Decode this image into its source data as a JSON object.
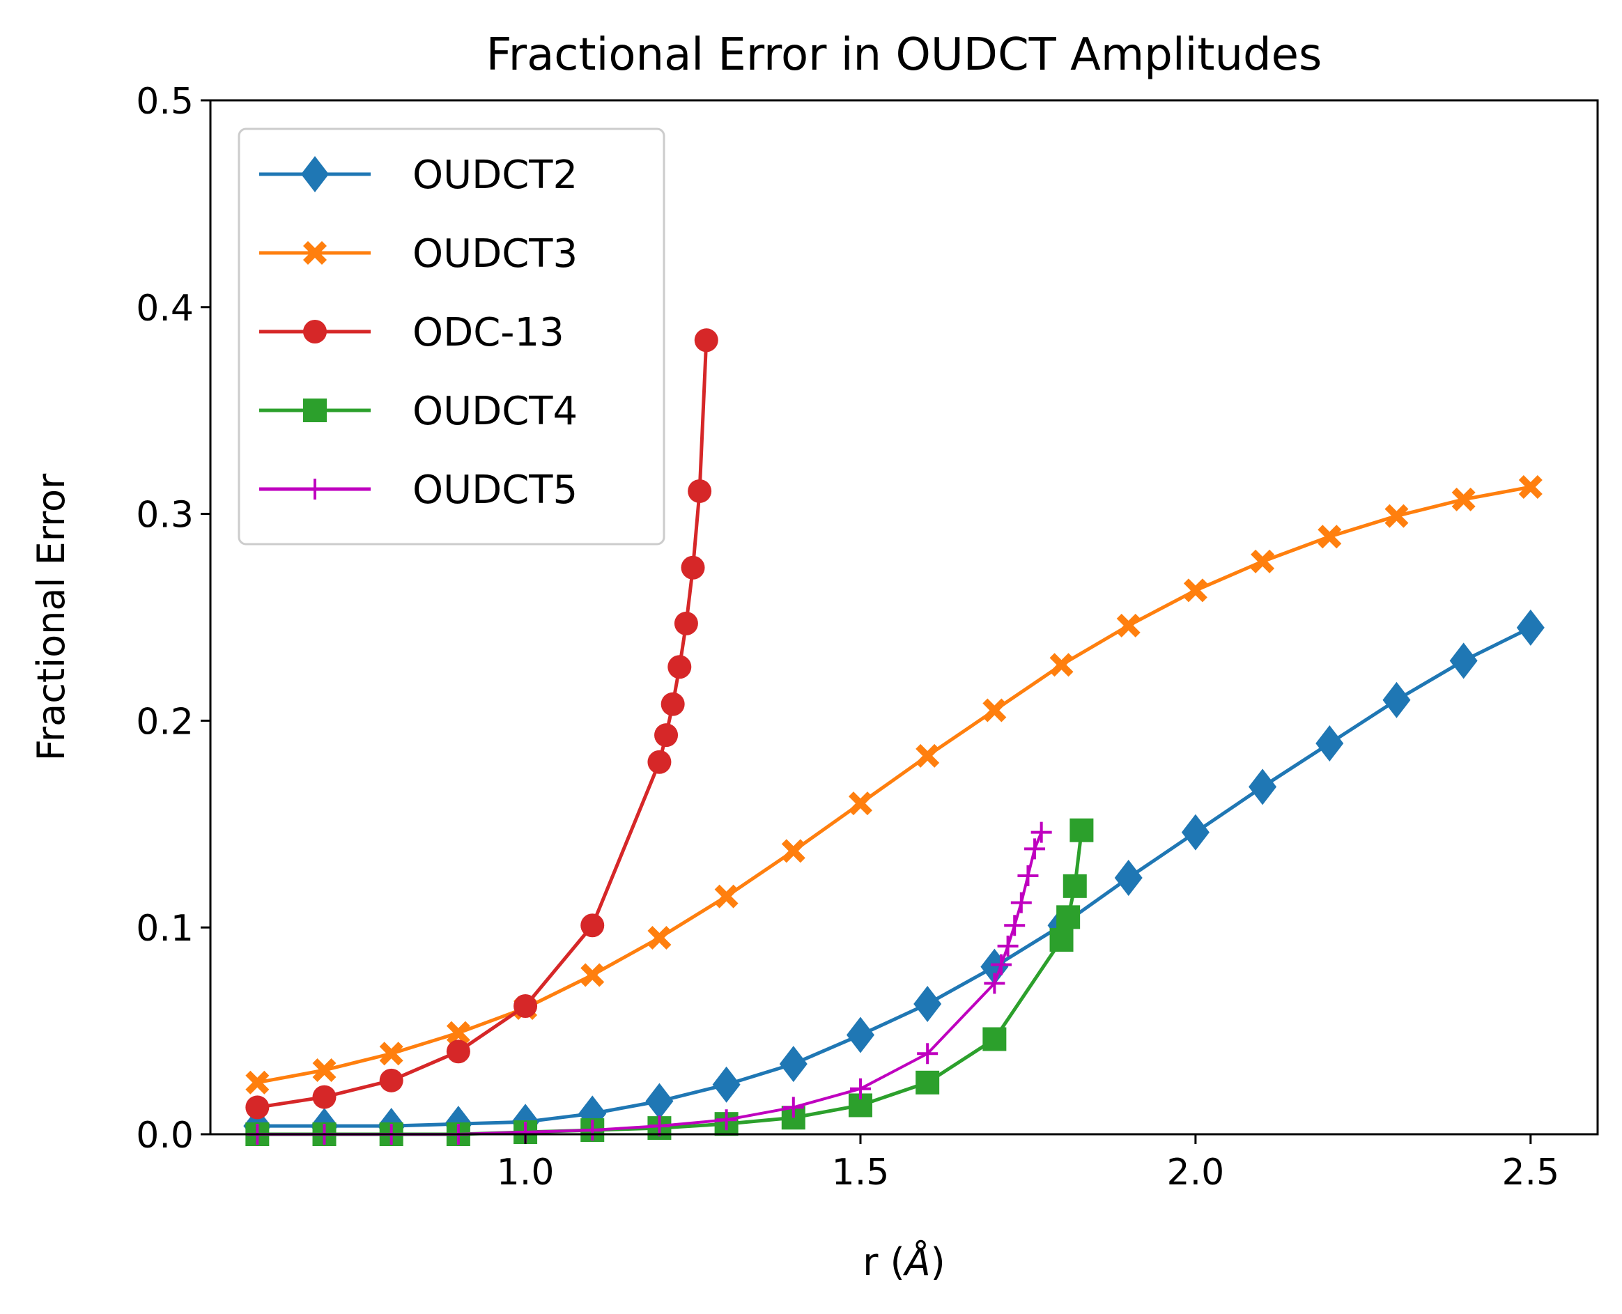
{
  "chart_data": {
    "type": "line",
    "title": "Fractional Error in OUDCT Amplitudes",
    "xlabel": "r (",
    "xlabel_unit": "Å",
    "xlabel_close": ")",
    "ylabel": "Fractional Error",
    "xlim": [
      0.53,
      2.6
    ],
    "ylim": [
      0.0,
      0.5
    ],
    "xticks": [
      1.0,
      1.5,
      2.0,
      2.5
    ],
    "xtick_labels": [
      "1.0",
      "1.5",
      "2.0",
      "2.5"
    ],
    "yticks": [
      0.0,
      0.1,
      0.2,
      0.3,
      0.4,
      0.5
    ],
    "ytick_labels": [
      "0.0",
      "0.1",
      "0.2",
      "0.3",
      "0.4",
      "0.5"
    ],
    "grid": false,
    "legend_position": "upper-left",
    "series": [
      {
        "name": "OUDCT2",
        "color": "#1f77b4",
        "marker": "diamond",
        "x": [
          0.6,
          0.7,
          0.8,
          0.9,
          1.0,
          1.1,
          1.2,
          1.3,
          1.4,
          1.5,
          1.6,
          1.7,
          1.8,
          1.9,
          2.0,
          2.1,
          2.2,
          2.3,
          2.4,
          2.5
        ],
        "y": [
          0.004,
          0.004,
          0.004,
          0.005,
          0.006,
          0.01,
          0.016,
          0.024,
          0.034,
          0.048,
          0.063,
          0.081,
          0.101,
          0.124,
          0.146,
          0.168,
          0.189,
          0.21,
          0.229,
          0.245
        ]
      },
      {
        "name": "OUDCT3",
        "color": "#ff7f0e",
        "marker": "x-filled",
        "x": [
          0.6,
          0.7,
          0.8,
          0.9,
          1.0,
          1.1,
          1.2,
          1.3,
          1.4,
          1.5,
          1.6,
          1.7,
          1.8,
          1.9,
          2.0,
          2.1,
          2.2,
          2.3,
          2.4,
          2.5
        ],
        "y": [
          0.025,
          0.031,
          0.039,
          0.049,
          0.061,
          0.077,
          0.095,
          0.115,
          0.137,
          0.16,
          0.183,
          0.205,
          0.227,
          0.246,
          0.263,
          0.277,
          0.289,
          0.299,
          0.307,
          0.313
        ]
      },
      {
        "name": "ODC-13",
        "color": "#d62728",
        "marker": "circle",
        "x": [
          0.6,
          0.7,
          0.8,
          0.9,
          1.0,
          1.1,
          1.2,
          1.21,
          1.22,
          1.23,
          1.24,
          1.25,
          1.26,
          1.27
        ],
        "y": [
          0.013,
          0.018,
          0.026,
          0.04,
          0.062,
          0.101,
          0.18,
          0.193,
          0.208,
          0.226,
          0.247,
          0.274,
          0.311,
          0.384
        ]
      },
      {
        "name": "OUDCT4",
        "color": "#2ca02c",
        "marker": "square",
        "x": [
          0.6,
          0.7,
          0.8,
          0.9,
          1.0,
          1.1,
          1.2,
          1.3,
          1.4,
          1.5,
          1.6,
          1.7,
          1.8,
          1.81,
          1.82,
          1.83
        ],
        "y": [
          0.0,
          0.0,
          0.0,
          0.0,
          0.001,
          0.002,
          0.003,
          0.005,
          0.008,
          0.014,
          0.025,
          0.046,
          0.094,
          0.105,
          0.12,
          0.147
        ]
      },
      {
        "name": "OUDCT5",
        "color": "#bf00bf",
        "marker": "plus",
        "x": [
          0.6,
          0.7,
          0.8,
          0.9,
          1.0,
          1.1,
          1.2,
          1.3,
          1.4,
          1.5,
          1.6,
          1.7,
          1.71,
          1.72,
          1.73,
          1.74,
          1.75,
          1.76,
          1.77
        ],
        "y": [
          0.0,
          0.0,
          0.0,
          0.0,
          0.001,
          0.002,
          0.004,
          0.007,
          0.013,
          0.022,
          0.039,
          0.073,
          0.082,
          0.091,
          0.101,
          0.112,
          0.125,
          0.138,
          0.146
        ]
      }
    ]
  }
}
